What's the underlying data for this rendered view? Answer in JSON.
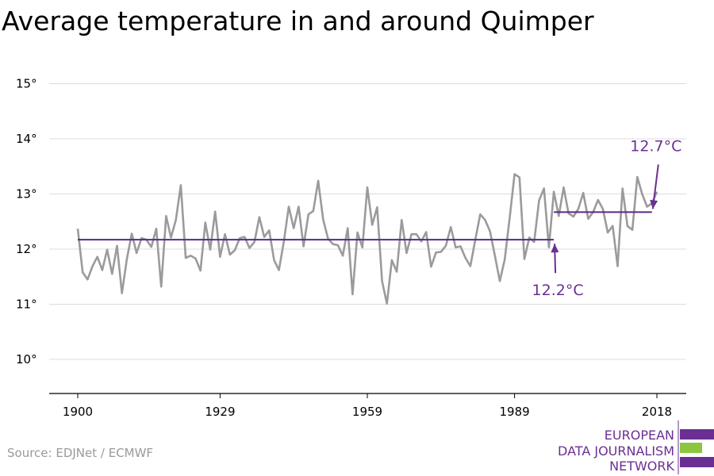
{
  "title": "Average temperature in and around Quimper",
  "source": "Source: EDJNet / ECMWF",
  "logo": {
    "lines": [
      "EUROPEAN",
      "DATA JOURNALISM",
      "NETWORK"
    ],
    "colors": {
      "purple": "#6b2f93",
      "green": "#8cc63f"
    }
  },
  "colors": {
    "series": "#9b9b9b",
    "reference": "#5b2a86",
    "annotation": "#6b2f93",
    "grid": "#dcdcdc"
  },
  "chart_data": {
    "type": "line",
    "title": "Average temperature in and around Quimper",
    "xlabel": "",
    "ylabel": "",
    "xlim": [
      1900,
      2018
    ],
    "ylim": [
      9.5,
      15.4
    ],
    "x_ticks": [
      1900,
      1929,
      1959,
      1989,
      2018
    ],
    "x_tick_labels": [
      "1900",
      "1929",
      "1959",
      "1989",
      "2018"
    ],
    "y_ticks": [
      10,
      11,
      12,
      13,
      14,
      15
    ],
    "y_tick_labels": [
      "10°",
      "11°",
      "12°",
      "13°",
      "14°",
      "15°"
    ],
    "grid": "horizontal",
    "legend": "none",
    "series": [
      {
        "x_start": 1900,
        "x_step": 1,
        "values": [
          12.37,
          11.58,
          11.45,
          11.69,
          11.86,
          11.62,
          11.99,
          11.55,
          12.06,
          11.2,
          11.82,
          12.28,
          11.93,
          12.2,
          12.17,
          12.04,
          12.37,
          11.32,
          12.6,
          12.21,
          12.53,
          13.16,
          11.84,
          11.88,
          11.83,
          11.61,
          12.48,
          11.99,
          12.68,
          11.86,
          12.27,
          11.9,
          11.98,
          12.2,
          12.22,
          12.02,
          12.13,
          12.58,
          12.22,
          12.34,
          11.8,
          11.62,
          12.14,
          12.77,
          12.38,
          12.77,
          12.05,
          12.63,
          12.69,
          13.24,
          12.54,
          12.19,
          12.09,
          12.07,
          11.88,
          12.38,
          11.18,
          12.3,
          12.03,
          13.12,
          12.44,
          12.76,
          11.42,
          11.01,
          11.8,
          11.59,
          12.53,
          11.93,
          12.27,
          12.27,
          12.14,
          12.31,
          11.68,
          11.94,
          11.95,
          12.06,
          12.4,
          12.03,
          12.05,
          11.84,
          11.69,
          12.17,
          12.63,
          12.53,
          12.32,
          11.88,
          11.42,
          11.81,
          12.56,
          13.36,
          13.3,
          11.82,
          12.21,
          12.13,
          12.88,
          13.1,
          12.03,
          13.04,
          12.6,
          13.12,
          12.65,
          12.59,
          12.73,
          13.02,
          12.55,
          12.67,
          12.89,
          12.73,
          12.3,
          12.42,
          11.69,
          13.1,
          12.42,
          12.35,
          13.31,
          13.0,
          12.77,
          12.83,
          13.04
        ]
      },
      {
        "x": [
          1900,
          1997
        ],
        "values": [
          12.17,
          12.17
        ]
      },
      {
        "x": [
          1997,
          2017
        ],
        "values": [
          12.67,
          12.67
        ]
      }
    ],
    "annotations": [
      {
        "text": "12.2°C",
        "target_x": 1997,
        "target_y": 12.17
      },
      {
        "text": "12.7°C",
        "target_x": 2017,
        "target_y": 12.67
      }
    ]
  }
}
